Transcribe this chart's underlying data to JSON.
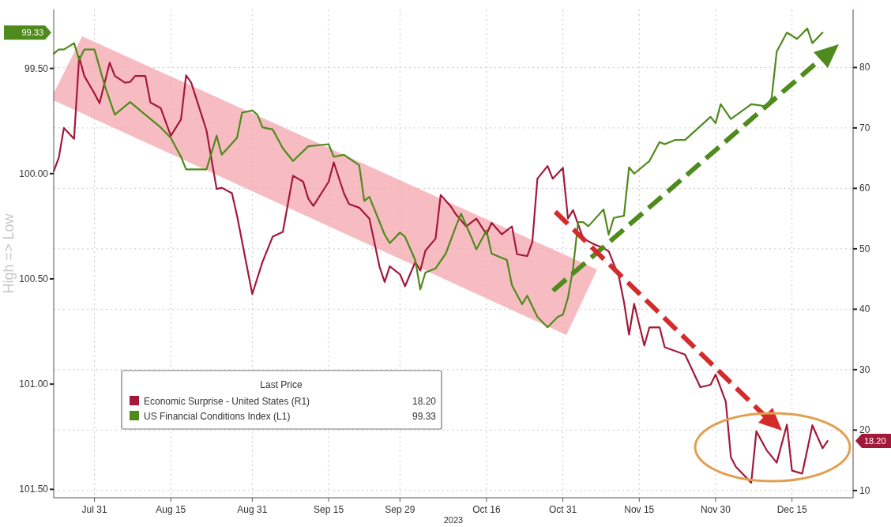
{
  "chart_data": {
    "type": "line",
    "ylabel": "High => Low",
    "xlabel": "2023",
    "legend_title": "Last Price",
    "annotations": [
      "18.20",
      "99.33"
    ],
    "legend": "bottom left",
    "grid": true,
    "xlim": [
      "2023-07-23",
      "2023-12-27"
    ],
    "xticks": [
      {
        "value": "2023-07-31",
        "label": "Jul 31"
      },
      {
        "value": "2023-08-15",
        "label": "Aug 15"
      },
      {
        "value": "2023-08-31",
        "label": "Aug 31"
      },
      {
        "value": "2023-09-15",
        "label": "Sep 15"
      },
      {
        "value": "2023-09-29",
        "label": "Sep 29"
      },
      {
        "value": "2023-10-16",
        "label": "Oct 16"
      },
      {
        "value": "2023-10-31",
        "label": "Oct 31"
      },
      {
        "value": "2023-11-15",
        "label": "Nov 15"
      },
      {
        "value": "2023-11-30",
        "label": "Nov 30"
      },
      {
        "value": "2023-12-15",
        "label": "Dec 15"
      }
    ],
    "ylim": [
      101.54,
      99.22
    ],
    "yticks": [
      {
        "value": 99.5,
        "label": "99.50"
      },
      {
        "value": 100,
        "label": "100.00"
      },
      {
        "value": 100.5,
        "label": "100.50"
      },
      {
        "value": 101,
        "label": "101.00"
      },
      {
        "value": 101.5,
        "label": "101.50"
      }
    ],
    "y2lim": [
      8.8,
      89.6
    ],
    "y2ticks": [
      10,
      20,
      30,
      40,
      50,
      60,
      70,
      80
    ],
    "series": [
      {
        "name": "Economic Surprise - United States (R1)",
        "color": "#a3193a",
        "axis": "y2",
        "x": [
          "2023-07-23",
          "2023-07-24",
          "2023-07-25",
          "2023-07-27",
          "2023-07-28",
          "2023-07-29",
          "2023-07-31",
          "2023-08-01",
          "2023-08-03",
          "2023-08-04",
          "2023-08-06",
          "2023-08-07",
          "2023-08-08",
          "2023-08-10",
          "2023-08-11",
          "2023-08-13",
          "2023-08-15",
          "2023-08-17",
          "2023-08-18",
          "2023-08-19",
          "2023-08-22",
          "2023-08-24",
          "2023-08-25",
          "2023-08-27",
          "2023-08-28",
          "2023-08-31",
          "2023-09-02",
          "2023-09-04",
          "2023-09-06",
          "2023-09-08",
          "2023-09-10",
          "2023-09-11",
          "2023-09-12",
          "2023-09-15",
          "2023-09-16",
          "2023-09-18",
          "2023-09-19",
          "2023-09-21",
          "2023-09-23",
          "2023-09-25",
          "2023-09-26",
          "2023-09-27",
          "2023-09-29",
          "2023-09-30",
          "2023-10-02",
          "2023-10-03",
          "2023-10-04",
          "2023-10-06",
          "2023-10-07",
          "2023-10-09",
          "2023-10-10",
          "2023-10-12",
          "2023-10-14",
          "2023-10-16",
          "2023-10-17",
          "2023-10-19",
          "2023-10-21",
          "2023-10-22",
          "2023-10-24",
          "2023-10-25",
          "2023-10-26",
          "2023-10-28",
          "2023-10-29",
          "2023-10-31",
          "2023-11-01",
          "2023-11-02",
          "2023-11-04",
          "2023-11-06",
          "2023-11-08",
          "2023-11-09",
          "2023-11-11",
          "2023-11-12",
          "2023-11-13",
          "2023-11-14",
          "2023-11-16",
          "2023-11-17",
          "2023-11-19",
          "2023-11-20",
          "2023-11-24",
          "2023-11-27",
          "2023-11-29",
          "2023-11-30",
          "2023-12-02",
          "2023-12-03",
          "2023-12-04",
          "2023-12-07",
          "2023-12-08",
          "2023-12-10",
          "2023-12-12",
          "2023-12-14",
          "2023-12-15",
          "2023-12-17",
          "2023-12-18",
          "2023-12-19",
          "2023-12-21",
          "2023-12-22"
        ],
        "values": [
          62.8,
          65.1,
          70.0,
          68.2,
          81.8,
          78.6,
          75.7,
          74.1,
          80.8,
          78.6,
          77.5,
          77.6,
          78.6,
          78.6,
          74.2,
          73.3,
          68.7,
          71.4,
          78.7,
          77.5,
          69.6,
          59.9,
          60.1,
          59.2,
          55.5,
          42.5,
          47.8,
          52.0,
          52.8,
          62.1,
          61.1,
          58.3,
          57.1,
          61.1,
          64.3,
          59.2,
          57.4,
          56.8,
          55.0,
          47.0,
          44.5,
          47.1,
          45.8,
          43.8,
          47.8,
          46.4,
          49.7,
          51.7,
          58.9,
          57.0,
          55.7,
          53.7,
          55.0,
          52.4,
          54.3,
          52.4,
          53.7,
          49.1,
          48.8,
          51.1,
          61.6,
          63.7,
          61.6,
          63.4,
          55.0,
          56.4,
          51.7,
          50.8,
          50.1,
          49.6,
          45.4,
          41.2,
          35.8,
          40.9,
          34.0,
          37.0,
          37.0,
          33.7,
          32.5,
          27.1,
          27.5,
          29.2,
          24.7,
          15.5,
          13.9,
          11.3,
          19.8,
          16.7,
          14.6,
          20.9,
          13.3,
          12.8,
          16.7,
          20.8,
          17.0,
          18.2
        ]
      },
      {
        "name": "US Financial Conditions Index (L1)",
        "color": "#4f8a1c",
        "axis": "y",
        "x": [
          "2023-07-23",
          "2023-07-24",
          "2023-07-25",
          "2023-07-27",
          "2023-07-28",
          "2023-07-29",
          "2023-07-31",
          "2023-08-02",
          "2023-08-04",
          "2023-08-07",
          "2023-08-09",
          "2023-08-13",
          "2023-08-15",
          "2023-08-17",
          "2023-08-18",
          "2023-08-22",
          "2023-08-24",
          "2023-08-25",
          "2023-08-28",
          "2023-08-29",
          "2023-08-31",
          "2023-09-01",
          "2023-09-02",
          "2023-09-04",
          "2023-09-06",
          "2023-09-08",
          "2023-09-11",
          "2023-09-15",
          "2023-09-16",
          "2023-09-18",
          "2023-09-21",
          "2023-09-22",
          "2023-09-23",
          "2023-09-26",
          "2023-09-27",
          "2023-09-29",
          "2023-09-30",
          "2023-10-02",
          "2023-10-03",
          "2023-10-04",
          "2023-10-06",
          "2023-10-08",
          "2023-10-10",
          "2023-10-11",
          "2023-10-13",
          "2023-10-14",
          "2023-10-16",
          "2023-10-17",
          "2023-10-20",
          "2023-10-21",
          "2023-10-23",
          "2023-10-24",
          "2023-10-26",
          "2023-10-28",
          "2023-10-30",
          "2023-10-31",
          "2023-11-01",
          "2023-11-02",
          "2023-11-03",
          "2023-11-04",
          "2023-11-05",
          "2023-11-08",
          "2023-11-09",
          "2023-11-10",
          "2023-11-12",
          "2023-11-13",
          "2023-11-14",
          "2023-11-17",
          "2023-11-19",
          "2023-11-20",
          "2023-11-22",
          "2023-11-24",
          "2023-11-29",
          "2023-11-30",
          "2023-12-01",
          "2023-12-03",
          "2023-12-07",
          "2023-12-10",
          "2023-12-11",
          "2023-12-12",
          "2023-12-14",
          "2023-12-16",
          "2023-12-18",
          "2023-12-19",
          "2023-12-21"
        ],
        "values": [
          99.43,
          99.41,
          99.41,
          99.38,
          99.46,
          99.41,
          99.41,
          99.58,
          99.72,
          99.66,
          99.7,
          99.78,
          99.83,
          99.92,
          99.98,
          99.98,
          99.82,
          99.91,
          99.83,
          99.71,
          99.7,
          99.72,
          99.78,
          99.79,
          99.88,
          99.94,
          99.87,
          99.86,
          99.92,
          99.91,
          99.96,
          100.13,
          100.11,
          100.29,
          100.33,
          100.28,
          100.3,
          100.41,
          100.55,
          100.47,
          100.45,
          100.38,
          100.25,
          100.19,
          100.3,
          100.36,
          100.27,
          100.38,
          100.41,
          100.53,
          100.62,
          100.58,
          100.68,
          100.73,
          100.68,
          100.67,
          100.59,
          100.45,
          100.23,
          100.23,
          100.25,
          100.17,
          100.29,
          100.21,
          100.2,
          99.97,
          100.0,
          99.94,
          99.85,
          99.86,
          99.84,
          99.84,
          99.73,
          99.76,
          99.67,
          99.74,
          99.67,
          99.68,
          99.64,
          99.42,
          99.33,
          99.36,
          99.31,
          99.38,
          99.33
        ]
      }
    ]
  }
}
